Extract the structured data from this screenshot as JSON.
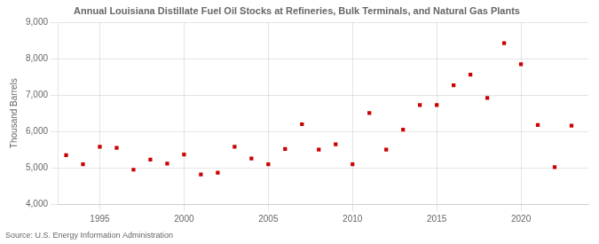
{
  "chart_data": {
    "type": "scatter",
    "title": "Annual Louisiana Distillate Fuel Oil Stocks at Refineries, Bulk Terminals, and Natural Gas Plants",
    "ylabel": "Thousand Barrels",
    "annotations": [
      "Source: U.S. Energy Information Administration"
    ],
    "x": [
      1993,
      1994,
      1995,
      1996,
      1997,
      1998,
      1999,
      2000,
      2001,
      2002,
      2003,
      2004,
      2005,
      2006,
      2007,
      2008,
      2009,
      2010,
      2011,
      2012,
      2013,
      2014,
      2015,
      2016,
      2017,
      2018,
      2019,
      2020,
      2021,
      2022,
      2023
    ],
    "values": [
      5350,
      5100,
      5580,
      5550,
      4950,
      5230,
      5120,
      5370,
      4820,
      4870,
      5580,
      5260,
      5100,
      5520,
      6200,
      5500,
      5650,
      5100,
      6510,
      5500,
      6050,
      6730,
      6730,
      7270,
      7560,
      6920,
      8430,
      7850,
      6180,
      5020,
      6160
    ],
    "color": "#cc0000",
    "marker": "square",
    "xlim": [
      1992.5,
      2024
    ],
    "xticks": [
      1995,
      2000,
      2005,
      2010,
      2015,
      2020
    ],
    "ylim": [
      4000,
      9000
    ],
    "yticks": [
      {
        "value": 4000,
        "label": "4,000"
      },
      {
        "value": 5000,
        "label": "5,000"
      },
      {
        "value": 6000,
        "label": "6,000"
      },
      {
        "value": 7000,
        "label": "7,000"
      },
      {
        "value": 8000,
        "label": "8,000"
      },
      {
        "value": 9000,
        "label": "9,000"
      }
    ],
    "grid": true
  }
}
